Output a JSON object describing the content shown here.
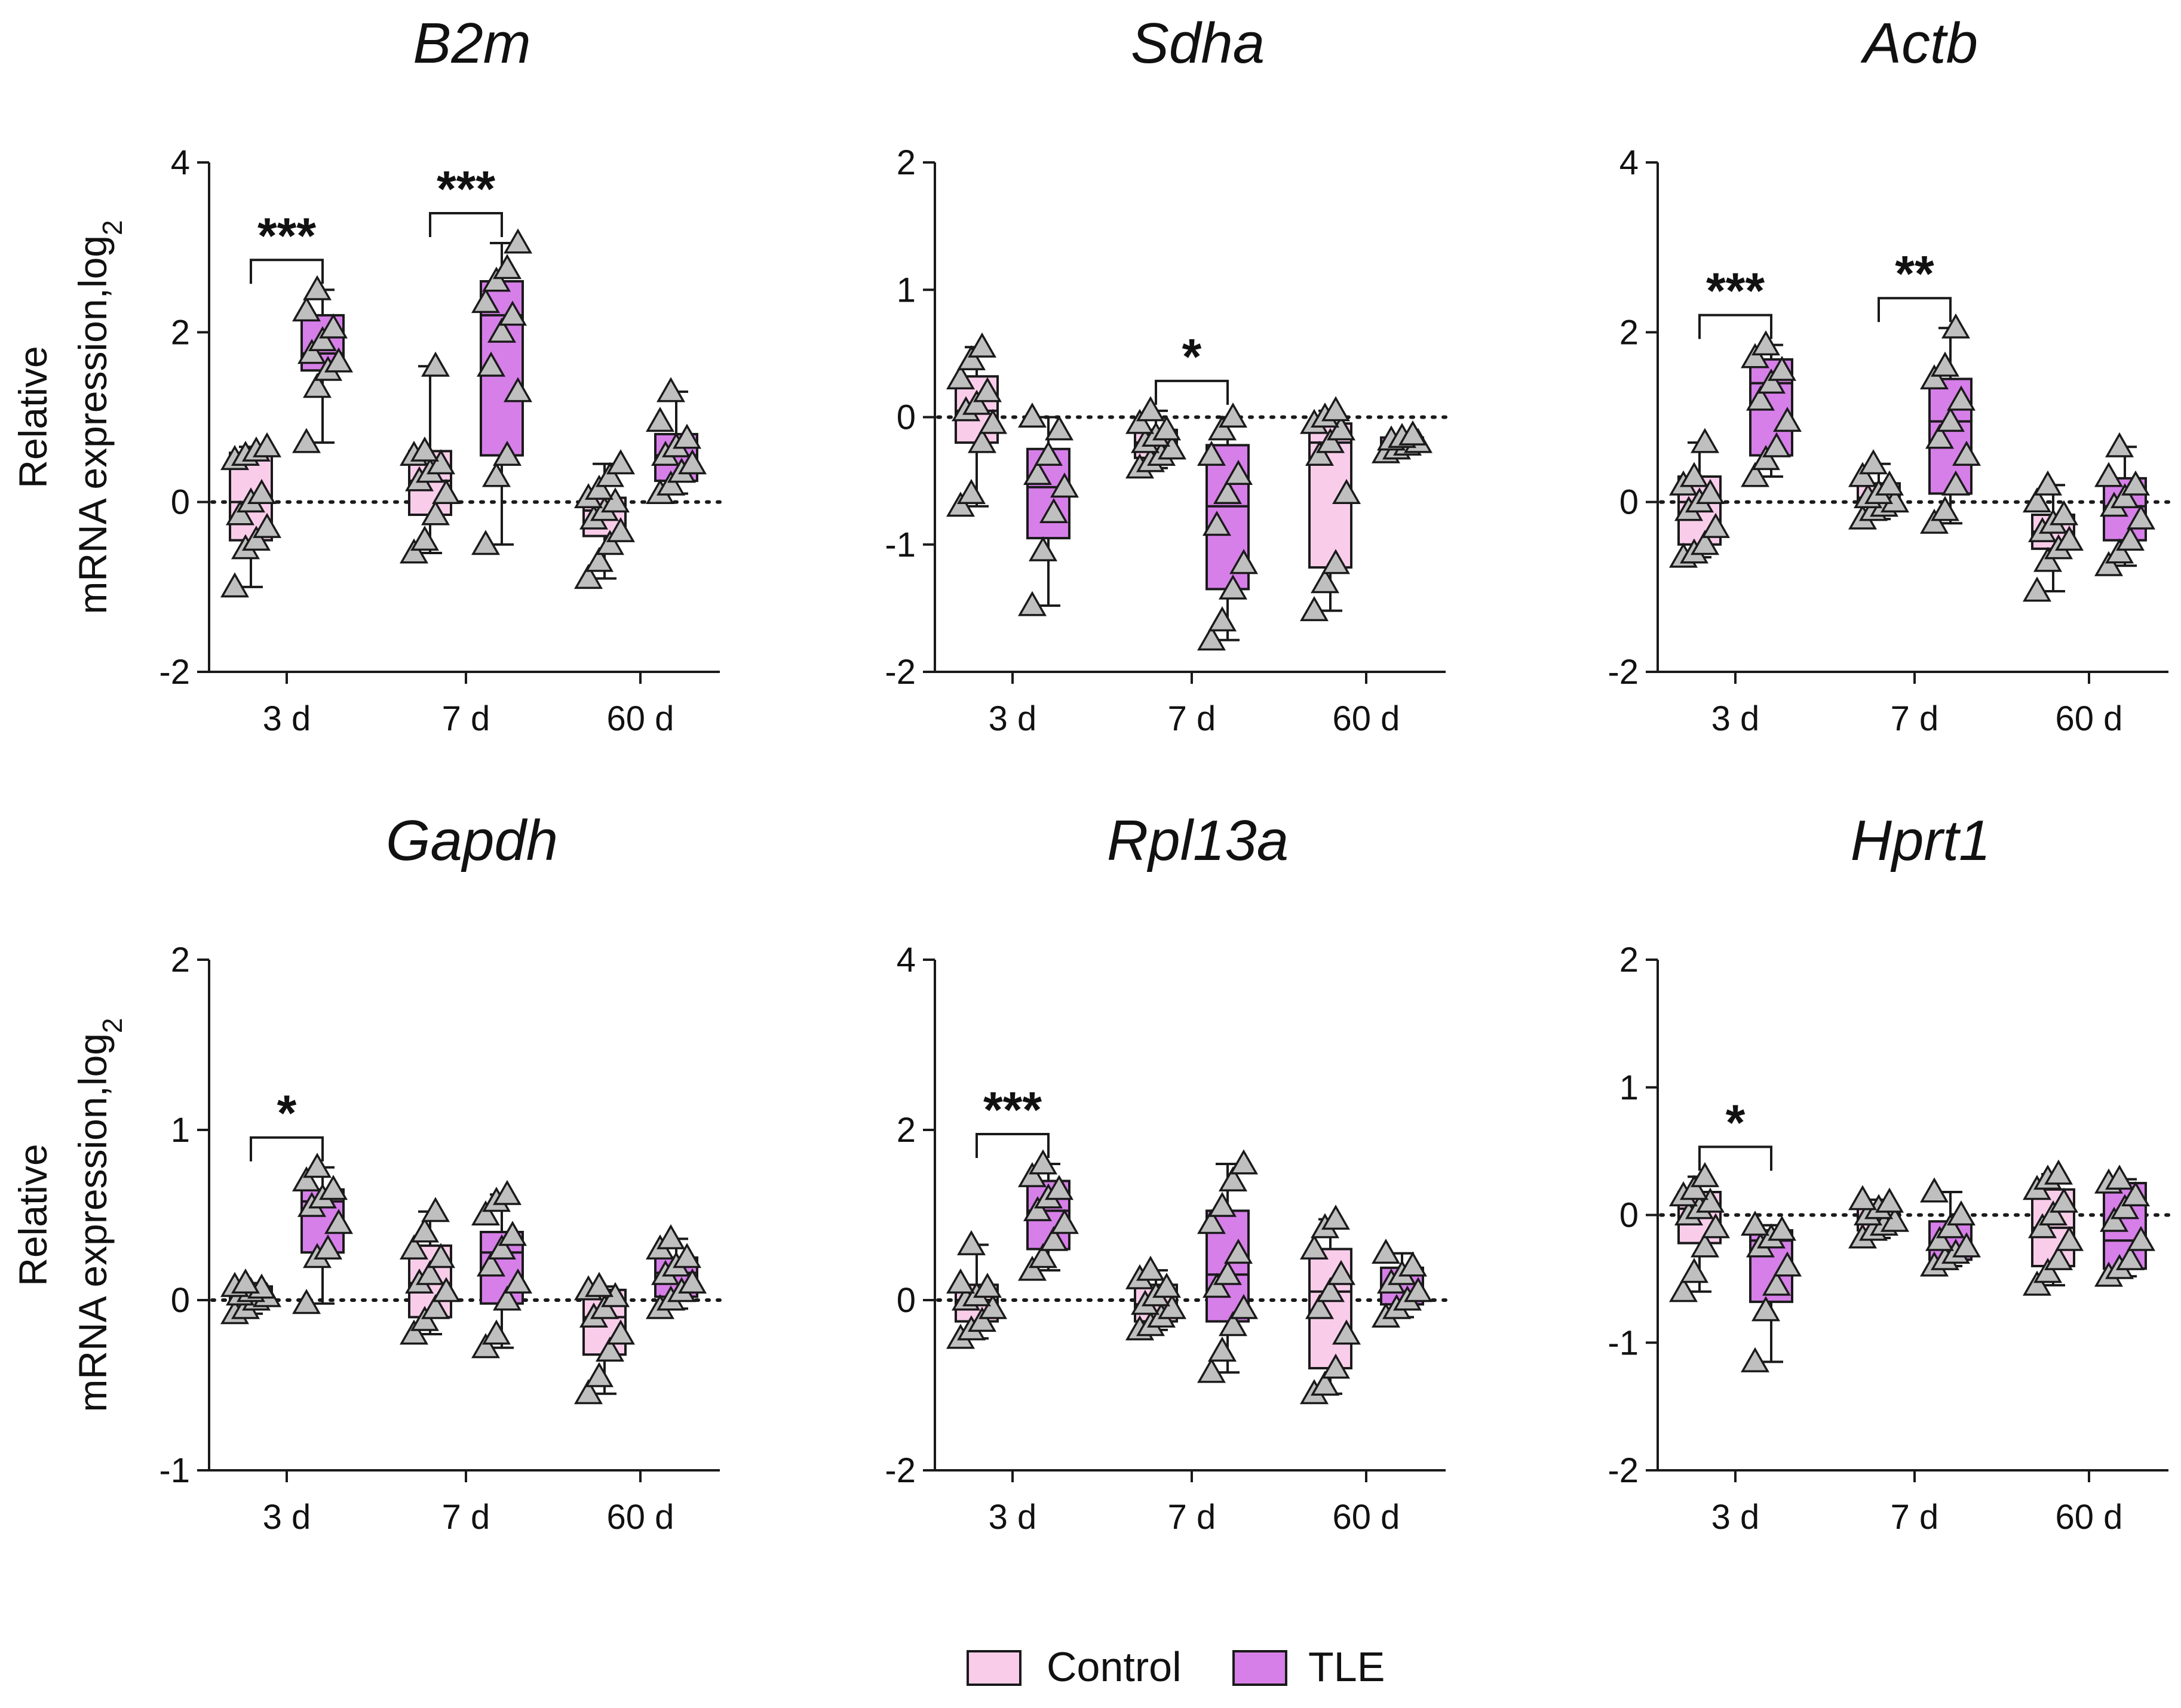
{
  "colors": {
    "control": "#f9cdea",
    "tle": "#d67fe8",
    "point": "#bfbfbf",
    "stroke": "#1a1a1a"
  },
  "legend": {
    "control": "Control",
    "tle": "TLE"
  },
  "chart_data": [
    {
      "type": "box",
      "title": "B2m",
      "ylabel_line1": "Relative",
      "ylabel_line2": "mRNA expression,log",
      "ylabel_sub": "2",
      "ylim": [
        -2,
        4
      ],
      "yticks": [
        "4",
        "2",
        "0",
        "-2"
      ],
      "categories": [
        "3 d",
        "7 d",
        "60 d"
      ],
      "groups": [
        {
          "box": [
            -0.45,
            0.0,
            0.58
          ],
          "whisker": [
            -1.0,
            0.65
          ],
          "points": [
            -1.0,
            -0.55,
            -0.45,
            -0.3,
            -0.15,
            0.0,
            0.1,
            0.5,
            0.55,
            0.6,
            0.65
          ]
        },
        {
          "box": [
            1.55,
            1.75,
            2.2
          ],
          "whisker": [
            0.7,
            2.5
          ],
          "points": [
            0.7,
            1.35,
            1.55,
            1.65,
            1.75,
            1.9,
            2.05,
            2.25,
            2.5
          ]
        },
        {
          "box": [
            -0.15,
            0.25,
            0.6
          ],
          "whisker": [
            -0.6,
            1.6
          ],
          "points": [
            -0.6,
            -0.45,
            -0.15,
            0.1,
            0.25,
            0.35,
            0.45,
            0.55,
            0.6,
            1.6
          ]
        },
        {
          "box": [
            0.55,
            2.2,
            2.6
          ],
          "whisker": [
            -0.5,
            3.05
          ],
          "points": [
            -0.5,
            0.3,
            0.55,
            1.3,
            1.6,
            2.0,
            2.2,
            2.35,
            2.6,
            2.75,
            3.05
          ]
        },
        {
          "box": [
            -0.4,
            -0.1,
            0.05
          ],
          "whisker": [
            -0.9,
            0.45
          ],
          "points": [
            -0.9,
            -0.7,
            -0.5,
            -0.35,
            -0.2,
            -0.1,
            0.0,
            0.05,
            0.15,
            0.3,
            0.45
          ]
        },
        {
          "box": [
            0.25,
            0.55,
            0.8
          ],
          "whisker": [
            0.1,
            1.3
          ],
          "points": [
            0.1,
            0.2,
            0.35,
            0.45,
            0.55,
            0.65,
            0.75,
            0.95,
            1.3
          ]
        }
      ],
      "significance": [
        {
          "category": "3 d",
          "label": "***"
        },
        {
          "category": "7 d",
          "label": "***"
        }
      ]
    },
    {
      "type": "box",
      "title": "Sdha",
      "ylabel_line1": "",
      "ylabel_line2": "",
      "ylabel_sub": "",
      "ylim": [
        -2,
        2
      ],
      "yticks": [
        "2",
        "1",
        "0",
        "-1",
        "-2"
      ],
      "categories": [
        "3 d",
        "7 d",
        "60 d"
      ],
      "groups": [
        {
          "box": [
            -0.2,
            0.05,
            0.32
          ],
          "whisker": [
            -0.7,
            0.55
          ],
          "points": [
            -0.7,
            -0.6,
            -0.2,
            -0.05,
            0.05,
            0.1,
            0.2,
            0.3,
            0.45,
            0.55
          ]
        },
        {
          "box": [
            -0.95,
            -0.55,
            -0.25
          ],
          "whisker": [
            -1.48,
            0.0
          ],
          "points": [
            -1.48,
            -1.05,
            -0.75,
            -0.55,
            -0.45,
            -0.3,
            -0.1,
            0.0
          ]
        },
        {
          "box": [
            -0.32,
            -0.2,
            -0.1
          ],
          "whisker": [
            -0.4,
            0.05
          ],
          "points": [
            -0.4,
            -0.35,
            -0.3,
            -0.25,
            -0.2,
            -0.15,
            -0.1,
            -0.05,
            0.05
          ]
        },
        {
          "box": [
            -1.35,
            -0.7,
            -0.22
          ],
          "whisker": [
            -1.75,
            0.0
          ],
          "points": [
            -1.75,
            -1.6,
            -1.35,
            -1.15,
            -0.85,
            -0.6,
            -0.45,
            -0.3,
            -0.1,
            0.0
          ]
        },
        {
          "box": [
            -1.18,
            -0.2,
            -0.05
          ],
          "whisker": [
            -1.52,
            0.05
          ],
          "points": [
            -1.52,
            -1.3,
            -1.15,
            -0.6,
            -0.3,
            -0.2,
            -0.1,
            -0.05,
            0.0,
            0.05
          ]
        },
        {
          "box": [
            -0.25,
            -0.2,
            -0.16
          ],
          "whisker": [
            -0.28,
            -0.14
          ],
          "points": [
            -0.28,
            -0.25,
            -0.22,
            -0.2,
            -0.18,
            -0.16,
            -0.14
          ]
        }
      ],
      "significance": [
        {
          "category": "7 d",
          "label": "*"
        }
      ]
    },
    {
      "type": "box",
      "title": "Actb",
      "ylabel_line1": "",
      "ylabel_line2": "",
      "ylabel_sub": "",
      "ylim": [
        -2,
        4
      ],
      "yticks": [
        "4",
        "2",
        "0",
        "-2"
      ],
      "categories": [
        "3 d",
        "7 d",
        "60 d"
      ],
      "groups": [
        {
          "box": [
            -0.5,
            0.0,
            0.3
          ],
          "whisker": [
            -0.65,
            0.7
          ],
          "points": [
            -0.65,
            -0.6,
            -0.5,
            -0.3,
            -0.1,
            0.0,
            0.1,
            0.2,
            0.3,
            0.7
          ]
        },
        {
          "box": [
            0.55,
            1.4,
            1.68
          ],
          "whisker": [
            0.3,
            1.85
          ],
          "points": [
            0.3,
            0.5,
            0.65,
            0.95,
            1.2,
            1.4,
            1.55,
            1.7,
            1.85
          ]
        },
        {
          "box": [
            -0.05,
            0.05,
            0.22
          ],
          "whisker": [
            -0.2,
            0.45
          ],
          "points": [
            -0.2,
            -0.1,
            -0.05,
            0.0,
            0.05,
            0.1,
            0.2,
            0.3,
            0.45
          ]
        },
        {
          "box": [
            0.1,
            0.95,
            1.45
          ],
          "whisker": [
            -0.25,
            2.05
          ],
          "points": [
            -0.25,
            -0.1,
            0.2,
            0.55,
            0.75,
            0.95,
            1.2,
            1.45,
            1.6,
            2.05
          ]
        },
        {
          "box": [
            -0.55,
            -0.35,
            -0.15
          ],
          "whisker": [
            -1.05,
            0.2
          ],
          "points": [
            -1.05,
            -0.7,
            -0.55,
            -0.45,
            -0.35,
            -0.25,
            -0.15,
            0.0,
            0.2
          ]
        },
        {
          "box": [
            -0.45,
            -0.05,
            0.28
          ],
          "whisker": [
            -0.75,
            0.65
          ],
          "points": [
            -0.75,
            -0.6,
            -0.45,
            -0.2,
            -0.05,
            0.05,
            0.2,
            0.3,
            0.65
          ]
        }
      ],
      "significance": [
        {
          "category": "3 d",
          "label": "***"
        },
        {
          "category": "7 d",
          "label": "**"
        }
      ]
    },
    {
      "type": "box",
      "title": "Gapdh",
      "ylabel_line1": "Relative",
      "ylabel_line2": "mRNA expression,log",
      "ylabel_sub": "2",
      "ylim": [
        -1,
        2
      ],
      "yticks": [
        "2",
        "1",
        "0",
        "-1"
      ],
      "categories": [
        "3 d",
        "7 d",
        "60 d"
      ],
      "groups": [
        {
          "box": [
            0.0,
            0.03,
            0.08
          ],
          "whisker": [
            -0.08,
            0.1
          ],
          "points": [
            -0.08,
            -0.05,
            0.0,
            0.02,
            0.03,
            0.05,
            0.07,
            0.08,
            0.1
          ]
        },
        {
          "box": [
            0.28,
            0.58,
            0.65
          ],
          "whisker": [
            -0.02,
            0.78
          ],
          "points": [
            -0.02,
            0.25,
            0.3,
            0.45,
            0.55,
            0.6,
            0.65,
            0.7,
            0.78
          ]
        },
        {
          "box": [
            -0.1,
            0.1,
            0.32
          ],
          "whisker": [
            -0.2,
            0.52
          ],
          "points": [
            -0.2,
            -0.12,
            -0.05,
            0.05,
            0.1,
            0.15,
            0.25,
            0.3,
            0.4,
            0.52
          ]
        },
        {
          "box": [
            -0.02,
            0.28,
            0.4
          ],
          "whisker": [
            -0.28,
            0.62
          ],
          "points": [
            -0.28,
            -0.2,
            0.0,
            0.1,
            0.2,
            0.3,
            0.38,
            0.5,
            0.58,
            0.62
          ]
        },
        {
          "box": [
            -0.32,
            -0.1,
            0.06
          ],
          "whisker": [
            -0.55,
            0.08
          ],
          "points": [
            -0.55,
            -0.45,
            -0.3,
            -0.2,
            -0.1,
            -0.05,
            0.02,
            0.06,
            0.08
          ]
        },
        {
          "box": [
            0.02,
            0.16,
            0.25
          ],
          "whisker": [
            -0.05,
            0.36
          ],
          "points": [
            -0.05,
            0.0,
            0.05,
            0.1,
            0.15,
            0.2,
            0.25,
            0.3,
            0.36
          ]
        }
      ],
      "significance": [
        {
          "category": "3 d",
          "label": "*"
        }
      ]
    },
    {
      "type": "box",
      "title": "Rpl13a",
      "ylabel_line1": "",
      "ylabel_line2": "",
      "ylabel_sub": "",
      "ylim": [
        -2,
        4
      ],
      "yticks": [
        "4",
        "2",
        "0",
        "-2"
      ],
      "categories": [
        "3 d",
        "7 d",
        "60 d"
      ],
      "groups": [
        {
          "box": [
            -0.25,
            0.0,
            0.18
          ],
          "whisker": [
            -0.45,
            0.65
          ],
          "points": [
            -0.45,
            -0.35,
            -0.25,
            -0.1,
            0.0,
            0.05,
            0.15,
            0.2,
            0.65
          ]
        },
        {
          "box": [
            0.6,
            1.05,
            1.4
          ],
          "whisker": [
            0.35,
            1.6
          ],
          "points": [
            0.35,
            0.5,
            0.7,
            0.9,
            1.05,
            1.2,
            1.3,
            1.45,
            1.6
          ]
        },
        {
          "box": [
            -0.25,
            -0.05,
            0.18
          ],
          "whisker": [
            -0.35,
            0.35
          ],
          "points": [
            -0.35,
            -0.3,
            -0.2,
            -0.1,
            -0.05,
            0.05,
            0.15,
            0.25,
            0.35
          ]
        },
        {
          "box": [
            -0.25,
            0.3,
            1.05
          ],
          "whisker": [
            -0.85,
            1.6
          ],
          "points": [
            -0.85,
            -0.6,
            -0.3,
            -0.1,
            0.15,
            0.3,
            0.55,
            0.9,
            1.1,
            1.4,
            1.6
          ]
        },
        {
          "box": [
            -0.8,
            0.1,
            0.6
          ],
          "whisker": [
            -1.1,
            0.95
          ],
          "points": [
            -1.1,
            -1.0,
            -0.8,
            -0.4,
            -0.1,
            0.1,
            0.3,
            0.6,
            0.85,
            0.95
          ]
        },
        {
          "box": [
            -0.05,
            0.1,
            0.38
          ],
          "whisker": [
            -0.2,
            0.55
          ],
          "points": [
            -0.2,
            -0.1,
            0.0,
            0.1,
            0.2,
            0.3,
            0.4,
            0.55
          ]
        }
      ],
      "significance": [
        {
          "category": "3 d",
          "label": "***"
        }
      ]
    },
    {
      "type": "box",
      "title": "Hprt1",
      "ylabel_line1": "",
      "ylabel_line2": "",
      "ylabel_sub": "",
      "ylim": [
        -2,
        2
      ],
      "yticks": [
        "2",
        "1",
        "0",
        "-1",
        "-2"
      ],
      "categories": [
        "3 d",
        "7 d",
        "60 d"
      ],
      "groups": [
        {
          "box": [
            -0.22,
            0.05,
            0.18
          ],
          "whisker": [
            -0.6,
            0.3
          ],
          "points": [
            -0.6,
            -0.45,
            -0.25,
            -0.1,
            0.0,
            0.05,
            0.1,
            0.15,
            0.2,
            0.3
          ]
        },
        {
          "box": [
            -0.68,
            -0.2,
            -0.12
          ],
          "whisker": [
            -1.15,
            -0.08
          ],
          "points": [
            -1.15,
            -0.75,
            -0.55,
            -0.4,
            -0.25,
            -0.18,
            -0.12,
            -0.08
          ]
        },
        {
          "box": [
            -0.12,
            -0.05,
            0.05
          ],
          "whisker": [
            -0.18,
            0.12
          ],
          "points": [
            -0.18,
            -0.12,
            -0.08,
            -0.05,
            0.0,
            0.05,
            0.1,
            0.12
          ]
        },
        {
          "box": [
            -0.35,
            -0.25,
            -0.05
          ],
          "whisker": [
            -0.4,
            0.18
          ],
          "points": [
            -0.4,
            -0.35,
            -0.3,
            -0.25,
            -0.2,
            -0.1,
            0.0,
            0.18
          ]
        },
        {
          "box": [
            -0.4,
            -0.1,
            0.2
          ],
          "whisker": [
            -0.55,
            0.32
          ],
          "points": [
            -0.55,
            -0.45,
            -0.35,
            -0.2,
            -0.1,
            0.0,
            0.1,
            0.2,
            0.28,
            0.32
          ]
        },
        {
          "box": [
            -0.42,
            -0.2,
            0.25
          ],
          "whisker": [
            -0.48,
            0.28
          ],
          "points": [
            -0.48,
            -0.42,
            -0.35,
            -0.2,
            -0.05,
            0.05,
            0.15,
            0.25,
            0.28
          ]
        }
      ],
      "significance": [
        {
          "category": "3 d",
          "label": "*"
        }
      ]
    }
  ]
}
